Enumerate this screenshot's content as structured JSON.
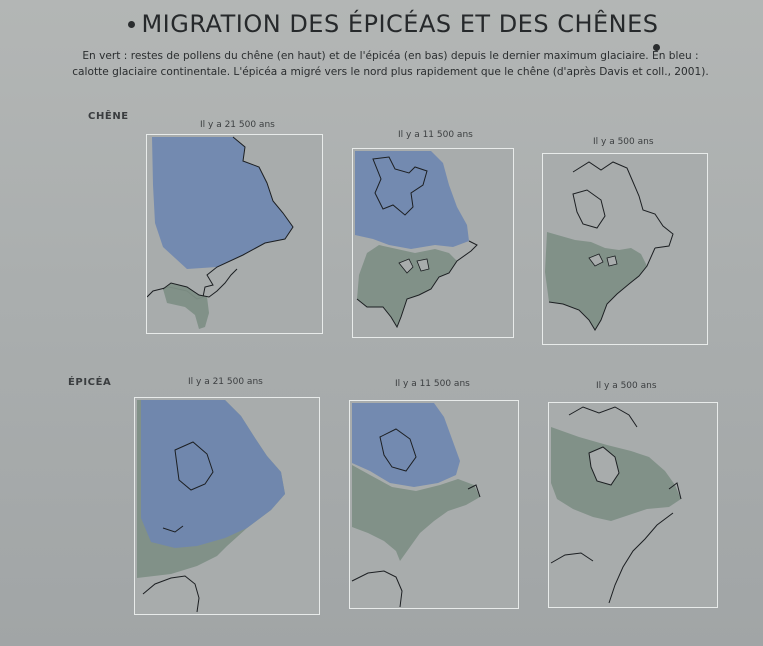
{
  "title": "MIGRATION DES ÉPICÉAS ET DES CHÊNES",
  "caption": {
    "line1": "En vert : restes de pollens du chêne (en haut) et de l'épicéa (en bas) depuis le dernier maximum glaciaire. En bleu :",
    "line2": "calotte glaciaire continentale. L'épicéa a migré vers le nord plus rapidement que le chêne (d'après Davis et coll., 2001)."
  },
  "rows": {
    "oak": {
      "label": "CHÊNE",
      "maps": [
        {
          "time": "Il y a 21 500 ans"
        },
        {
          "time": "Il y a 11 500 ans"
        },
        {
          "time": "Il y a 500 ans"
        }
      ]
    },
    "spruce": {
      "label": "ÉPICÉA",
      "maps": [
        {
          "time": "Il y a 21 500 ans"
        },
        {
          "time": "Il y a 11 500 ans"
        },
        {
          "time": "Il y a 500 ans"
        }
      ]
    }
  },
  "colors": {
    "ice": "#6f87b0",
    "pollen": "#7e8f86",
    "coast": "#1c1f22",
    "frame": "#e8ebea"
  }
}
